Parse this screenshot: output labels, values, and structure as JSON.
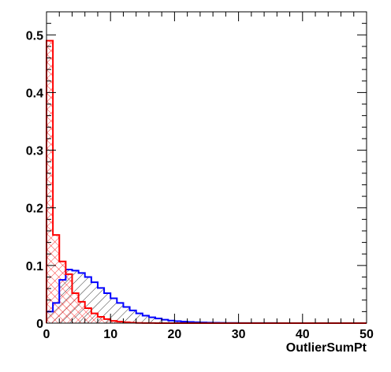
{
  "chart_data": {
    "type": "histogram",
    "xlabel": "OutlierSumPt",
    "ylabel": "",
    "xlim": [
      0,
      50
    ],
    "ylim": [
      0,
      0.54
    ],
    "bin_width": 1,
    "x_ticks": [
      0,
      10,
      20,
      30,
      40,
      50
    ],
    "x_tick_labels": [
      "0",
      "10",
      "20",
      "30",
      "40",
      "50"
    ],
    "y_ticks": [
      0,
      0.1,
      0.2,
      0.3,
      0.4,
      0.5
    ],
    "y_tick_labels": [
      "0",
      "0.1",
      "0.2",
      "0.3",
      "0.4",
      "0.5"
    ],
    "grid": false,
    "legend": "none",
    "series": [
      {
        "color": "#0000ff",
        "fill": "hatch-diagonal-down",
        "values": [
          0.02,
          0.035,
          0.075,
          0.093,
          0.091,
          0.087,
          0.08,
          0.071,
          0.061,
          0.052,
          0.043,
          0.035,
          0.028,
          0.022,
          0.017,
          0.013,
          0.01,
          0.008,
          0.006,
          0.0045,
          0.0035,
          0.0027,
          0.002,
          0.0016,
          0.0012,
          0.0009,
          0.0007,
          0.0005,
          0.0004,
          0.0003,
          0.00025,
          0.0002,
          0.00015,
          0.0001,
          0.0001,
          0.0001,
          0,
          0,
          0,
          0,
          0,
          0,
          0,
          0,
          0,
          0,
          0,
          0,
          0,
          0
        ]
      },
      {
        "color": "#ff0000",
        "fill": "hatch-cross",
        "values": [
          0.49,
          0.153,
          0.107,
          0.085,
          0.052,
          0.037,
          0.026,
          0.017,
          0.011,
          0.007,
          0.004,
          0.0025,
          0.0015,
          0.0008,
          0.0004,
          0.0002,
          0.0001,
          0,
          0,
          0,
          0,
          0,
          0,
          0,
          0,
          0,
          0,
          0,
          0,
          0,
          0,
          0,
          0,
          0,
          0,
          0,
          0,
          0,
          0,
          0,
          0,
          0,
          0,
          0,
          0,
          0,
          0,
          0,
          0,
          0
        ]
      }
    ]
  }
}
